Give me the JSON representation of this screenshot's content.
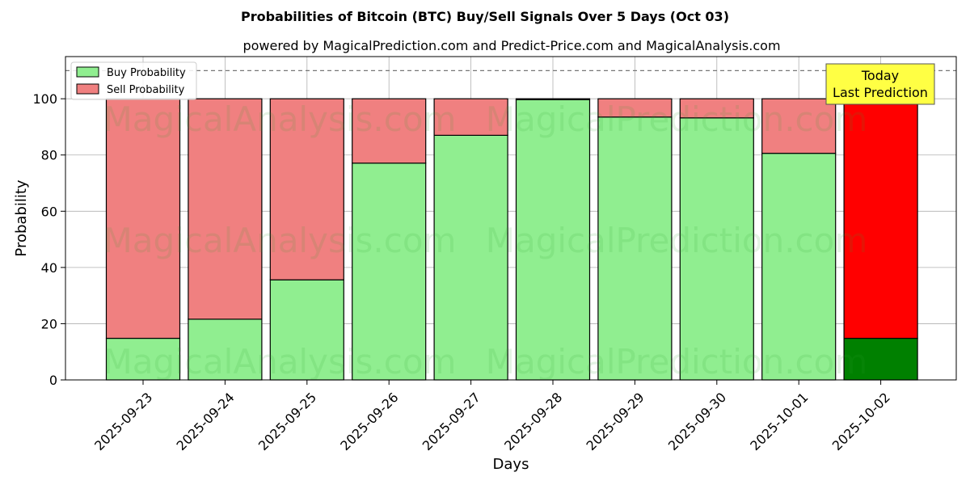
{
  "chart_data": {
    "type": "bar",
    "stacked": true,
    "title": "Probabilities of Bitcoin (BTC) Buy/Sell Signals Over 5 Days (Oct 03)",
    "subtitle": "powered by MagicalPrediction.com and Predict-Price.com and MagicalAnalysis.com",
    "xlabel": "Days",
    "ylabel": "Probability",
    "ylim": [
      0,
      115
    ],
    "yticks": [
      0,
      20,
      40,
      60,
      80,
      100
    ],
    "reference_line": 110,
    "grid": true,
    "legend_position": "top-left",
    "categories": [
      "2025-09-23",
      "2025-09-24",
      "2025-09-25",
      "2025-09-26",
      "2025-09-27",
      "2025-09-28",
      "2025-09-29",
      "2025-09-30",
      "2025-10-01",
      "2025-10-02"
    ],
    "series": [
      {
        "name": "Buy Probability",
        "color": "#90ee90",
        "highlight_color": "#008000",
        "values": [
          14.8,
          21.6,
          35.6,
          77.1,
          87.0,
          99.7,
          93.5,
          93.2,
          80.6,
          14.8
        ]
      },
      {
        "name": "Sell Probability",
        "color": "#f08080",
        "highlight_color": "#ff0000",
        "values": [
          85.2,
          78.4,
          64.4,
          22.9,
          13.0,
          0.3,
          6.5,
          6.8,
          19.4,
          85.2
        ]
      }
    ],
    "highlight_index": 9,
    "annotation": {
      "line1": "Today",
      "line2": "Last Prediction",
      "color": "#ffff44"
    },
    "watermarks": [
      "MagicalAnalysis.com",
      "MagicalPrediction.com"
    ]
  }
}
